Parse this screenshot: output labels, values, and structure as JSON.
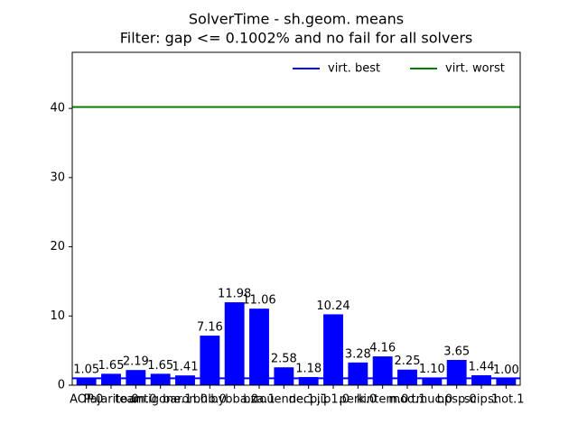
{
  "chart_data": {
    "type": "bar",
    "title": "SolverTime - sh.geom. means",
    "subtitle": "Filter: gap <= 0.1002% and no fail for all solvers",
    "categories": [
      "AOP.0",
      "Pajarito.0",
      "team.0",
      "antigone.1",
      "baron.0",
      "bhb.0",
      "bybba.0",
      "bza.1",
      "couenne.1",
      "decp.1",
      "jip1.0",
      "perk.0",
      "kintem.0",
      "mod.1",
      "tmuc.0",
      "bpsp.0",
      "scip.1",
      "shot.1"
    ],
    "values": [
      1.05,
      1.65,
      2.19,
      1.65,
      1.41,
      7.16,
      11.98,
      11.06,
      2.58,
      1.18,
      10.24,
      3.28,
      4.16,
      2.25,
      1.1,
      3.65,
      1.44,
      1.0
    ],
    "value_labels": [
      "1.05",
      "1.65",
      "2.19",
      "1.65",
      "1.41",
      "7.16",
      "11.98",
      "11.06",
      "2.58",
      "1.18",
      "10.24",
      "3.28",
      "4.16",
      "2.25",
      "1.10",
      "3.65",
      "1.44",
      "1.00"
    ],
    "color": "#0000ff",
    "lines": [
      {
        "name": "virt. best",
        "color": "#0000ff",
        "value": 1.0
      },
      {
        "name": "virt. worst",
        "color": "#008000",
        "value": 40.2
      }
    ],
    "legend": "upper right",
    "ylim": [
      0,
      48.1
    ],
    "yticks": [
      0,
      10,
      20,
      30,
      40
    ]
  }
}
